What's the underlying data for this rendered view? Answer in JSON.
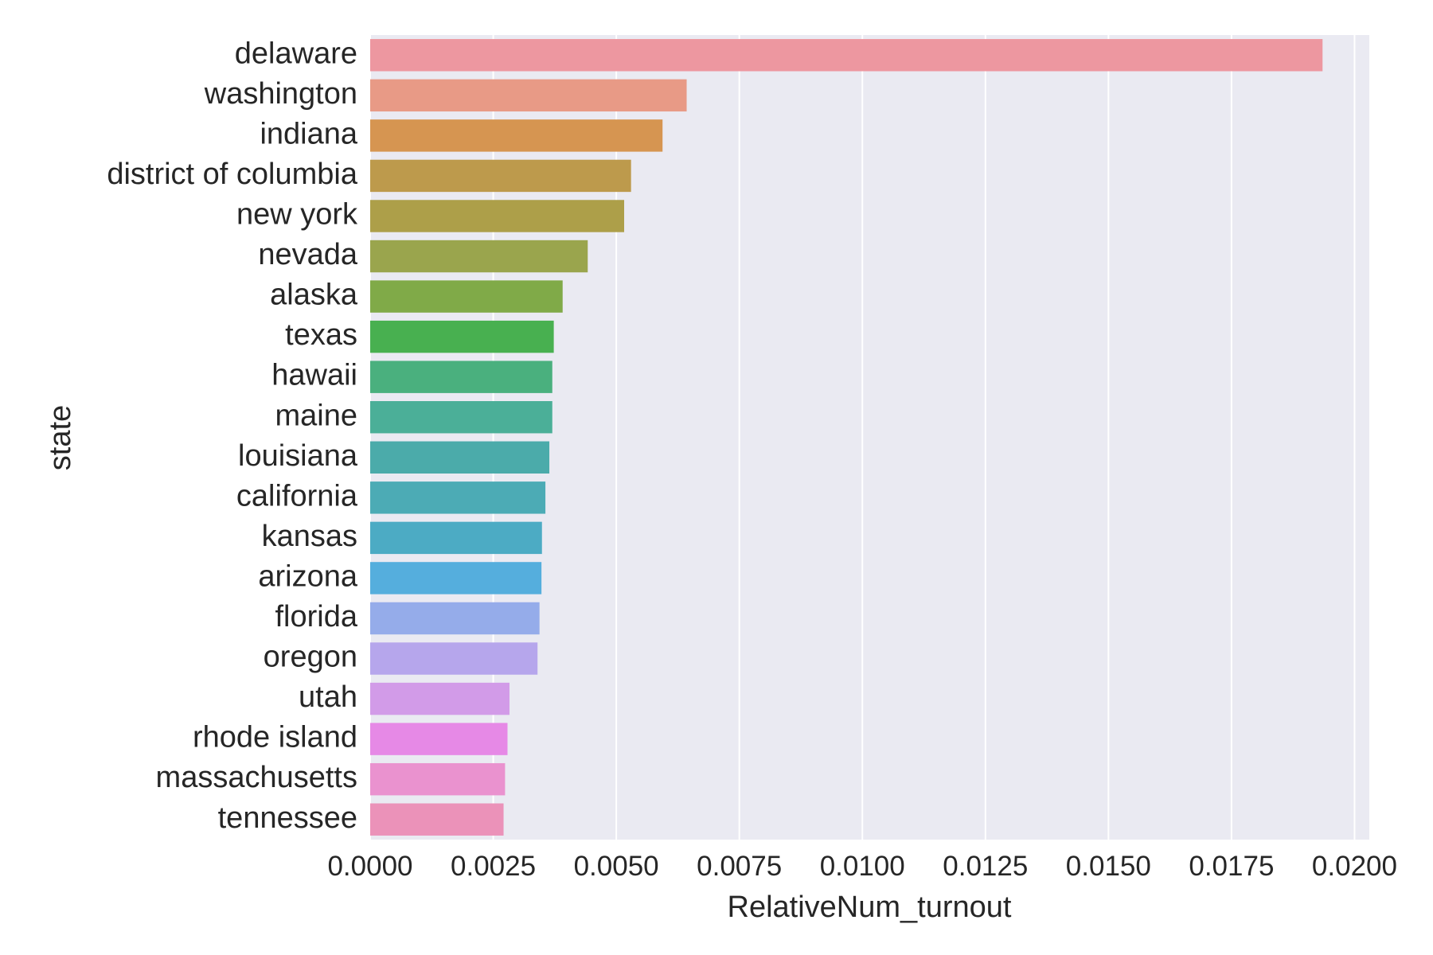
{
  "chart_data": {
    "type": "bar",
    "orientation": "horizontal",
    "title": "",
    "xlabel": "RelativeNum_turnout",
    "ylabel": "state",
    "xlim": [
      0,
      0.0203
    ],
    "xticks": [
      0.0,
      0.0025,
      0.005,
      0.0075,
      0.01,
      0.0125,
      0.015,
      0.0175,
      0.02
    ],
    "xtick_labels": [
      "0.0000",
      "0.0025",
      "0.0050",
      "0.0075",
      "0.0100",
      "0.0125",
      "0.0150",
      "0.0175",
      "0.0200"
    ],
    "grid": true,
    "background": "#eaeaf2",
    "categories": [
      "delaware",
      "washington",
      "indiana",
      "district of columbia",
      "new york",
      "nevada",
      "alaska",
      "texas",
      "hawaii",
      "maine",
      "louisiana",
      "california",
      "kansas",
      "arizona",
      "florida",
      "oregon",
      "utah",
      "rhode island",
      "massachusetts",
      "tennessee"
    ],
    "values": [
      0.01935,
      0.00643,
      0.00594,
      0.0053,
      0.00516,
      0.00442,
      0.00391,
      0.00373,
      0.0037,
      0.0037,
      0.00364,
      0.00356,
      0.00349,
      0.00348,
      0.00344,
      0.0034,
      0.00283,
      0.00279,
      0.00274,
      0.00271
    ],
    "colors": [
      "#ed97a0",
      "#e89a86",
      "#d69551",
      "#bd9a4c",
      "#ad9f49",
      "#9aa54d",
      "#80aa48",
      "#48b050",
      "#4ab07e",
      "#4baf98",
      "#4babaa",
      "#4cabb5",
      "#4cabc4",
      "#55aedd",
      "#95acea",
      "#b6a6ec",
      "#d29be8",
      "#e689e6",
      "#ea92cf",
      "#eb92b9"
    ]
  }
}
